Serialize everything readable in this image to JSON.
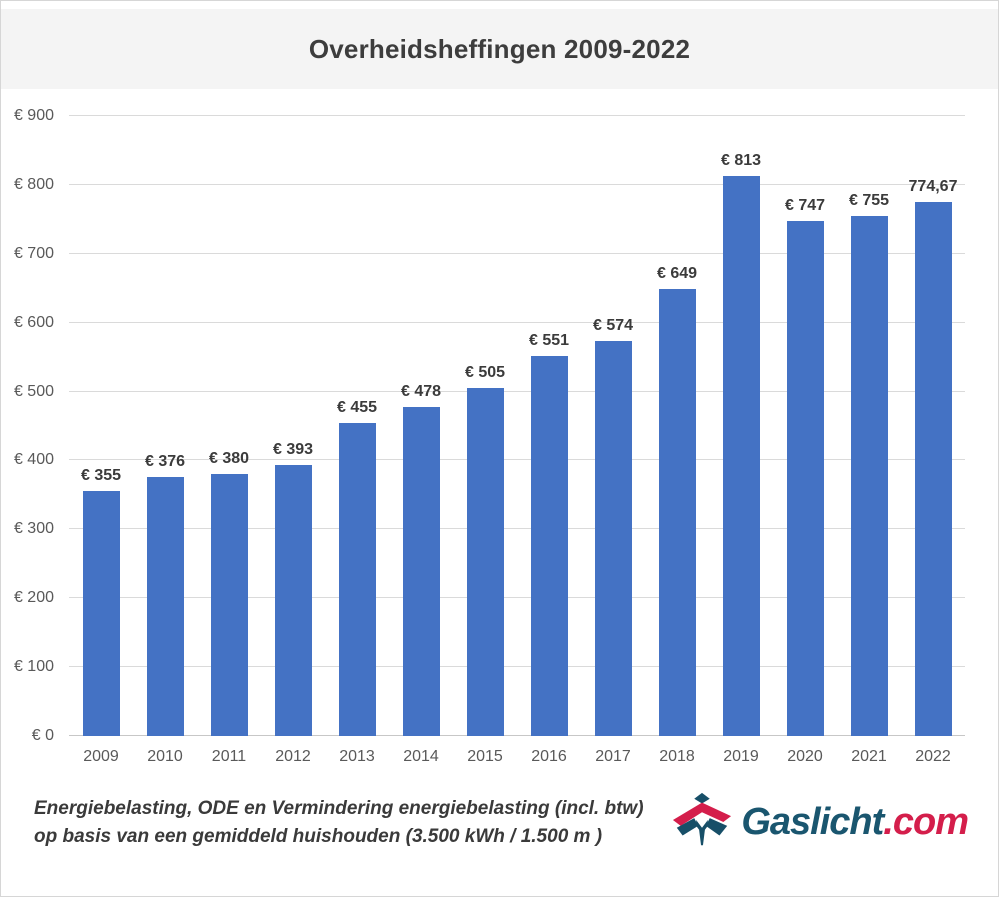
{
  "header": {
    "title": "Overheidsheffingen 2009-2022"
  },
  "chart_data": {
    "type": "bar",
    "title": "Overheidsheffingen 2009-2022",
    "categories": [
      "2009",
      "2010",
      "2011",
      "2012",
      "2013",
      "2014",
      "2015",
      "2016",
      "2017",
      "2018",
      "2019",
      "2020",
      "2021",
      "2022"
    ],
    "values": [
      355,
      376,
      380,
      393,
      455,
      478,
      505,
      551,
      574,
      649,
      813,
      747,
      755,
      774.67
    ],
    "bar_labels": [
      "€ 355",
      "€ 376",
      "€ 380",
      "€ 393",
      "€ 455",
      "€ 478",
      "€ 505",
      "€ 551",
      "€ 574",
      "€ 649",
      "€ 813",
      "€ 747",
      "€ 755",
      "774,67"
    ],
    "xlabel": "",
    "ylabel": "",
    "ylim": [
      0,
      900
    ],
    "ytick_step": 100,
    "ytick_prefix": "€ ",
    "grid": true,
    "legend_position": "none",
    "bar_color": "#4472C4"
  },
  "footnote": {
    "line1": "Energiebelasting, ODE en Vermindering energiebelasting (incl. btw)",
    "line2": "op basis van een gemiddeld huishouden (3.500 kWh / 1.500 m )"
  },
  "logo": {
    "brand": "Gaslicht",
    "suffix": ".com",
    "brand_color": "#1A566F",
    "suffix_color": "#D41E4B",
    "icon": "gaslicht-flame-icon"
  },
  "colors": {
    "bar": "#4472C4",
    "title_band": "#F4F4F4",
    "gridline": "#DADADA",
    "axis_text": "#595959",
    "bar_label_text": "#3B3B3B",
    "title_text": "#3D3D3D"
  }
}
